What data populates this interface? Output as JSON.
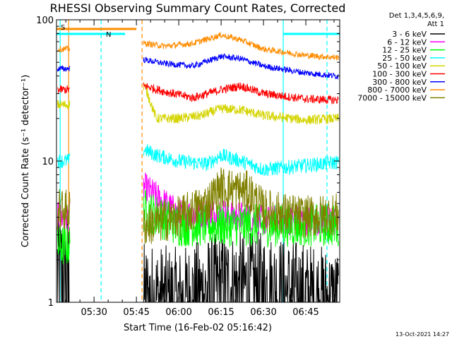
{
  "chart_data": {
    "type": "line",
    "title": "RHESSI Observing Summary Count Rates, Corrected",
    "xlabel": "Start Time (16-Feb-02 05:16:42)",
    "ylabel": "Corrected Count Rate (s⁻¹ detector⁻¹)",
    "y_scale": "log",
    "ylim": [
      1,
      100
    ],
    "xlim": [
      "05:16:42",
      "06:57:00"
    ],
    "x_ticks": [
      "05:30",
      "05:45",
      "06:00",
      "06:15",
      "06:30",
      "06:45"
    ],
    "y_ticks": [
      "1",
      "10",
      "100"
    ],
    "grid": false,
    "legend_position": "right",
    "legend_header": [
      "Det 1,3,4,5,6,9,",
      "Att 1"
    ],
    "footer": "13-Oct-2021 14:27",
    "markers": {
      "saa_label": "S",
      "night_label": "N",
      "orange_bar": {
        "start": "05:16:42",
        "end": "05:45:00"
      },
      "cyan_bars": [
        {
          "start": "05:16:42",
          "end": "05:41:00"
        },
        {
          "start": "06:37:00",
          "end": "06:57:00"
        }
      ],
      "vertical_lines": [
        {
          "time": "05:18:00",
          "color": "#00ffff",
          "style": "solid"
        },
        {
          "time": "05:21:00",
          "color": "#ff8c00",
          "style": "solid"
        },
        {
          "time": "05:32:30",
          "color": "#00ffff",
          "style": "dashed"
        },
        {
          "time": "05:47:00",
          "color": "#ff8c00",
          "style": "dashed"
        },
        {
          "time": "06:37:00",
          "color": "#00ffff",
          "style": "solid"
        },
        {
          "time": "06:52:30",
          "color": "#00ffff",
          "style": "dashed"
        }
      ]
    },
    "data_gap": {
      "start": "05:21:30",
      "end": "05:47:30"
    },
    "series": [
      {
        "name": "3 - 6 keV",
        "color": "#000000",
        "x": [
          "05:16:42",
          "05:20:00",
          "05:48:00",
          "06:00:00",
          "06:15:00",
          "06:30:00",
          "06:45:00",
          "06:56:00"
        ],
        "values": [
          1.8,
          1.8,
          1.1,
          1.0,
          1.3,
          1.3,
          1.1,
          1.0
        ]
      },
      {
        "name": "6 - 12 keV",
        "color": "#ff00ff",
        "x": [
          "05:16:42",
          "05:20:00",
          "05:48:00",
          "06:00:00",
          "06:15:00",
          "06:30:00",
          "06:45:00",
          "06:56:00"
        ],
        "values": [
          4.0,
          4.0,
          6.5,
          4.2,
          4.3,
          3.8,
          3.8,
          3.8
        ]
      },
      {
        "name": "12 - 25 keV",
        "color": "#00ff00",
        "x": [
          "05:16:42",
          "05:20:00",
          "05:48:00",
          "06:00:00",
          "06:15:00",
          "06:30:00",
          "06:45:00",
          "06:56:00"
        ],
        "values": [
          2.5,
          2.5,
          4.5,
          3.5,
          3.5,
          3.5,
          3.5,
          3.5
        ]
      },
      {
        "name": "25 - 50 keV",
        "color": "#00ffff",
        "x": [
          "05:16:42",
          "05:20:00",
          "05:48:00",
          "05:52:00",
          "06:00:00",
          "06:10:00",
          "06:15:00",
          "06:22:00",
          "06:30:00",
          "06:45:00",
          "06:56:00"
        ],
        "values": [
          10.0,
          10.0,
          12.0,
          11.0,
          10.0,
          9.5,
          11.0,
          10.0,
          8.7,
          9.3,
          9.8
        ]
      },
      {
        "name": "50 - 100 keV",
        "color": "#d4d400",
        "x": [
          "05:16:42",
          "05:20:00",
          "05:48:00",
          "05:52:00",
          "06:00:00",
          "06:08:00",
          "06:15:00",
          "06:22:00",
          "06:30:00",
          "06:45:00",
          "06:56:00"
        ],
        "values": [
          25.0,
          25.0,
          34.0,
          20.0,
          20.0,
          21.0,
          23.5,
          23.0,
          21.0,
          19.5,
          20.0
        ]
      },
      {
        "name": "100 - 300 keV",
        "color": "#ff0000",
        "x": [
          "05:16:42",
          "05:20:00",
          "05:48:00",
          "05:55:00",
          "06:05:00",
          "06:15:00",
          "06:22:00",
          "06:30:00",
          "06:45:00",
          "06:56:00"
        ],
        "values": [
          32.0,
          32.0,
          34.0,
          31.0,
          28.0,
          32.0,
          34.0,
          30.0,
          27.5,
          27.0
        ]
      },
      {
        "name": "300 - 800 keV",
        "color": "#0000ff",
        "x": [
          "05:16:42",
          "05:20:00",
          "05:48:00",
          "05:55:00",
          "06:05:00",
          "06:15:00",
          "06:22:00",
          "06:30:00",
          "06:45:00",
          "06:56:00"
        ],
        "values": [
          45.0,
          45.0,
          52.0,
          49.0,
          47.0,
          55.0,
          53.0,
          47.0,
          42.0,
          40.0
        ]
      },
      {
        "name": "800 - 7000 keV",
        "color": "#ff8c00",
        "x": [
          "05:16:42",
          "05:20:00",
          "05:48:00",
          "05:55:00",
          "06:05:00",
          "06:15:00",
          "06:22:00",
          "06:30:00",
          "06:45:00",
          "06:56:00"
        ],
        "values": [
          62.0,
          62.0,
          68.0,
          65.0,
          68.0,
          78.0,
          72.0,
          62.0,
          56.0,
          54.0
        ]
      },
      {
        "name": "7000 - 15000 keV",
        "color": "#808000",
        "x": [
          "05:16:42",
          "05:20:00",
          "05:48:00",
          "06:00:00",
          "06:10:00",
          "06:15:00",
          "06:25:00",
          "06:30:00",
          "06:45:00",
          "06:56:00"
        ],
        "values": [
          4.5,
          4.5,
          3.5,
          4.0,
          5.0,
          6.5,
          6.0,
          4.5,
          4.0,
          4.2
        ]
      }
    ]
  }
}
